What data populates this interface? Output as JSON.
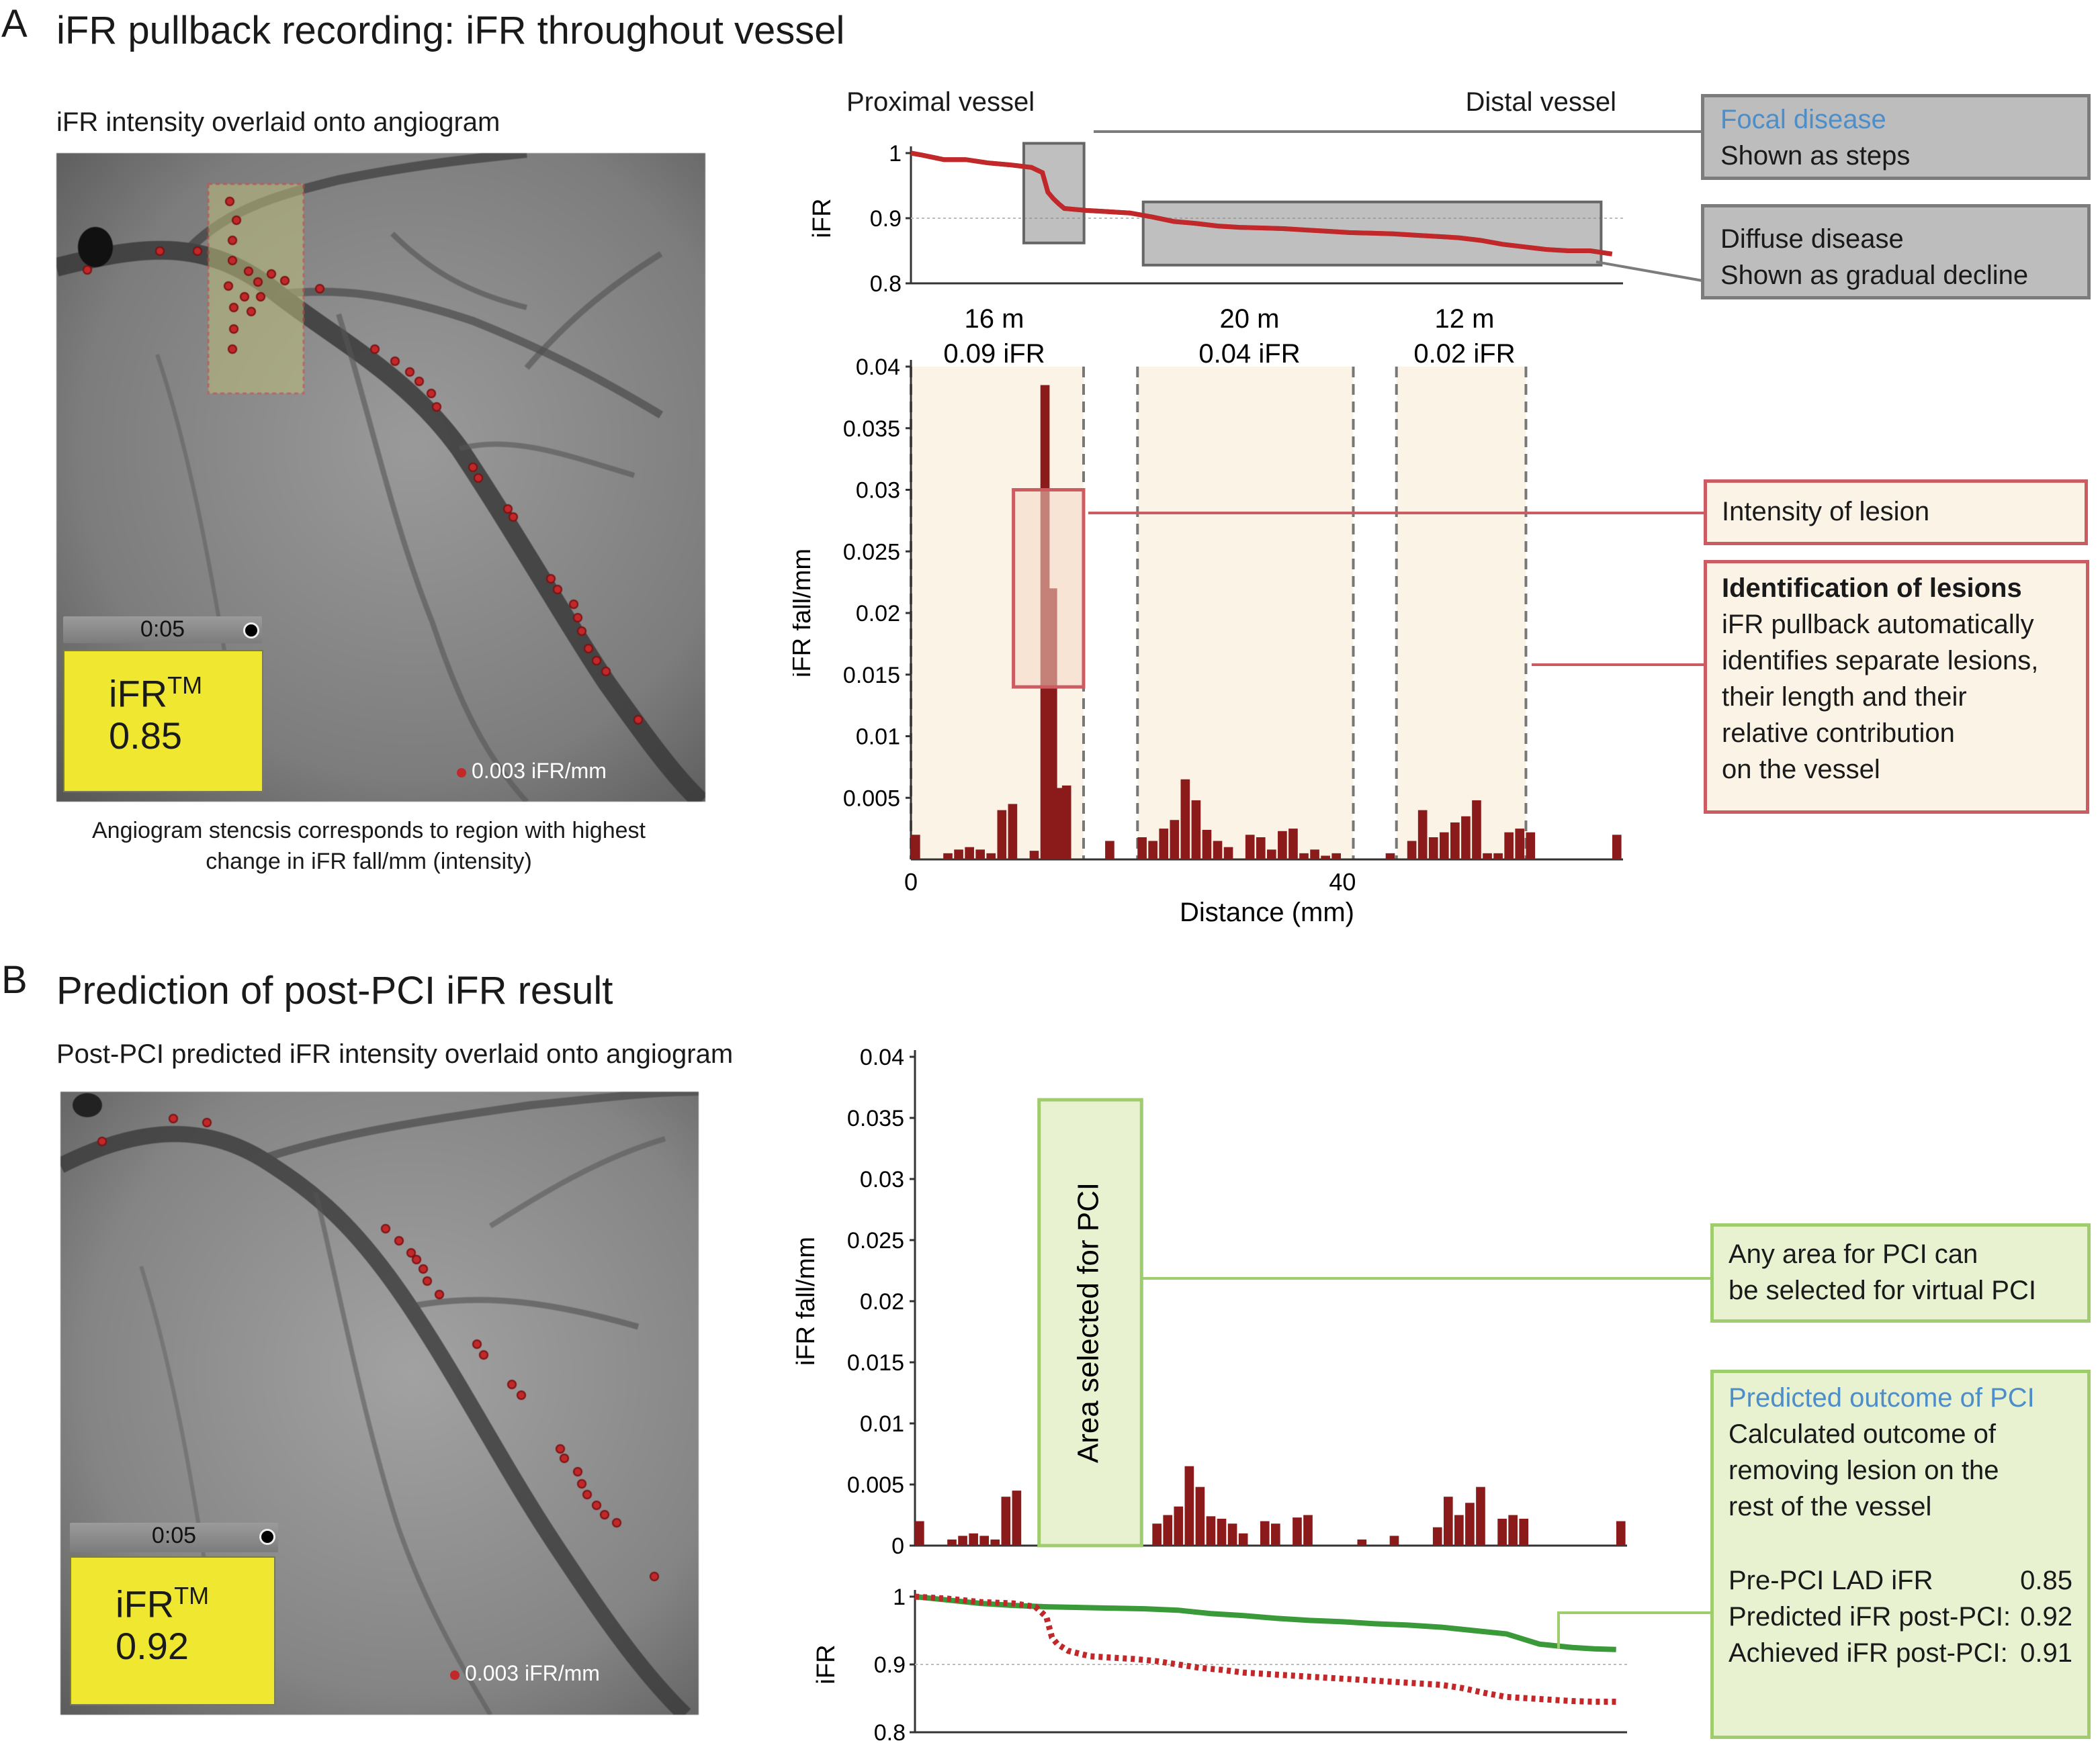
{
  "panel_a": {
    "letter": "A",
    "title": "iFR pullback recording: iFR throughout vessel",
    "angio_subtitle": "iFR intensity overlaid onto angiogram",
    "timer": "0:05",
    "ifr_label": "iFR",
    "ifr_tm": "TM",
    "ifr_value": "0.85",
    "scale_label": "0.003 iFR/mm",
    "caption_line1": "Angiogram stencsis corresponds to region with highest",
    "caption_line2": "change in iFR fall/mm (intensity)",
    "proximal_label": "Proximal vessel",
    "distal_label": "Distal vessel",
    "segments": [
      {
        "length": "16 m",
        "ifr": "0.09 iFR"
      },
      {
        "length": "20 m",
        "ifr": "0.04 iFR"
      },
      {
        "length": "12 m",
        "ifr": "0.02 iFR"
      }
    ],
    "callouts": {
      "focal_title": "Focal disease",
      "focal_text": "Shown as steps",
      "diffuse_title": "Diffuse disease",
      "diffuse_text": "Shown as gradual decline",
      "intensity": "Intensity of lesion",
      "identification_title": "Identification of lesions",
      "identification_lines": [
        "iFR pullback automatically",
        "identifies separate lesions,",
        "their length and their",
        "relative contribution",
        "on the vessel"
      ]
    }
  },
  "panel_b": {
    "letter": "B",
    "title": "Prediction of post-PCI iFR result",
    "angio_subtitle": "Post-PCI predicted iFR intensity overlaid onto angiogram",
    "timer": "0:05",
    "ifr_label": "iFR",
    "ifr_tm": "TM",
    "ifr_value": "0.92",
    "scale_label": "0.003 iFR/mm",
    "area_label": "Area selected for PCI",
    "callouts": {
      "any_area_lines": [
        "Any area for PCI can",
        "be selected for virtual PCI"
      ],
      "predicted_title": "Predicted outcome of PCI",
      "predicted_lines": [
        "Calculated outcome of",
        "removing lesion on the",
        "rest of the vessel"
      ],
      "results": [
        {
          "label": "Pre-PCI LAD iFR",
          "value": "0.85"
        },
        {
          "label": "Predicted iFR post-PCI:",
          "value": "0.92"
        },
        {
          "label": "Achieved iFR post-PCI:",
          "value": "0.91"
        }
      ]
    }
  },
  "colors": {
    "bar": "#8b1a1a",
    "pre_line": "#c0282a",
    "post_line": "#3a9a3a",
    "pink": "#cc5c62",
    "green": "#9fcc6c",
    "grey": "#7c7c7c"
  },
  "chart_data": [
    {
      "id": "a_ifr_trace",
      "type": "line",
      "ylabel": "iFR",
      "ylim": [
        0.8,
        1.0
      ],
      "yticks": [
        "1",
        "0.9",
        "0.8"
      ],
      "xlim": [
        0,
        65
      ],
      "series": [
        {
          "name": "iFR",
          "x": [
            0,
            1,
            3,
            5,
            7,
            9,
            10,
            11,
            12,
            12.5,
            13,
            13.5,
            14,
            16,
            18,
            20,
            22,
            24,
            26,
            28,
            30,
            32,
            34,
            36,
            38,
            40,
            42,
            44,
            46,
            48,
            50,
            52,
            54,
            56,
            58,
            60,
            62,
            64
          ],
          "y": [
            1.0,
            0.997,
            0.99,
            0.99,
            0.985,
            0.982,
            0.98,
            0.978,
            0.97,
            0.94,
            0.93,
            0.922,
            0.915,
            0.912,
            0.91,
            0.908,
            0.902,
            0.895,
            0.892,
            0.888,
            0.886,
            0.885,
            0.884,
            0.882,
            0.88,
            0.878,
            0.877,
            0.876,
            0.874,
            0.872,
            0.87,
            0.866,
            0.86,
            0.856,
            0.852,
            0.85,
            0.85,
            0.845
          ]
        }
      ]
    },
    {
      "id": "a_ifr_fall",
      "type": "bar",
      "xlabel": "Distance (mm)",
      "ylabel": "iFR fall/mm",
      "xlim": [
        0,
        66
      ],
      "xticks": [
        {
          "x": 0,
          "label": "0"
        },
        {
          "x": 40,
          "label": "40"
        }
      ],
      "ylim": [
        0,
        0.04
      ],
      "yticks": [
        "0.04",
        "0.035",
        "0.03",
        "0.025",
        "0.02",
        "0.015",
        "0.01",
        "0.005"
      ],
      "x": [
        0,
        3,
        4,
        5,
        6,
        7,
        8,
        9,
        11,
        12,
        12.7,
        13.4,
        14,
        18,
        21,
        22,
        23,
        24,
        25,
        26,
        27,
        28,
        29,
        31,
        32,
        33,
        34,
        35,
        36,
        37,
        38,
        39,
        44,
        46,
        47,
        48,
        49,
        50,
        51,
        52,
        53,
        54,
        55,
        56,
        57,
        65
      ],
      "values": [
        0.002,
        0.0005,
        0.0008,
        0.001,
        0.0008,
        0.0005,
        0.004,
        0.0045,
        0.0007,
        0.0385,
        0.022,
        0.0058,
        0.006,
        0.0015,
        0.0018,
        0.0015,
        0.0025,
        0.0032,
        0.0065,
        0.0048,
        0.0024,
        0.0015,
        0.001,
        0.002,
        0.0018,
        0.0008,
        0.0023,
        0.0025,
        0.0005,
        0.0008,
        0.0003,
        0.0005,
        0.0005,
        0.0015,
        0.004,
        0.0018,
        0.0022,
        0.003,
        0.0035,
        0.0048,
        0.0005,
        0.0005,
        0.0022,
        0.0025,
        0.0022,
        0.002
      ],
      "segment_ranges": [
        [
          0,
          16
        ],
        [
          21,
          41
        ],
        [
          45,
          57
        ]
      ],
      "highlight": {
        "x": [
          9.5,
          16
        ],
        "y": [
          0.014,
          0.03
        ]
      }
    },
    {
      "id": "b_ifr_fall",
      "type": "bar",
      "ylabel": "iFR fall/mm",
      "xlim": [
        0,
        66
      ],
      "ylim": [
        0,
        0.04
      ],
      "yticks": [
        "0.04",
        "0.035",
        "0.03",
        "0.025",
        "0.02",
        "0.015",
        "0.01",
        "0.005",
        "0"
      ],
      "x": [
        0,
        3,
        4,
        5,
        6,
        7,
        8,
        9,
        22,
        23,
        24,
        25,
        26,
        27,
        28,
        29,
        30,
        32,
        33,
        35,
        36,
        41,
        44,
        48,
        49,
        50,
        51,
        52,
        54,
        55,
        56,
        65
      ],
      "values": [
        0.002,
        0.0005,
        0.0008,
        0.001,
        0.0008,
        0.0005,
        0.004,
        0.0045,
        0.0018,
        0.0025,
        0.0032,
        0.0065,
        0.0048,
        0.0024,
        0.0022,
        0.0018,
        0.001,
        0.002,
        0.0018,
        0.0023,
        0.0025,
        0.0005,
        0.0008,
        0.0015,
        0.004,
        0.0025,
        0.0035,
        0.0048,
        0.0022,
        0.0025,
        0.0022,
        0.002
      ],
      "pci_region": [
        11.5,
        21
      ]
    },
    {
      "id": "b_ifr_trace",
      "type": "line",
      "ylabel": "iFR",
      "ylim": [
        0.8,
        1.0
      ],
      "yticks": [
        "1",
        "0.9",
        "0.8"
      ],
      "xlim": [
        0,
        65
      ],
      "series": [
        {
          "name": "Predicted post-PCI",
          "x": [
            0,
            3,
            6,
            9,
            12,
            15,
            18,
            21,
            24,
            27,
            30,
            33,
            36,
            39,
            42,
            45,
            48,
            51,
            54,
            57,
            60,
            62,
            64
          ],
          "y": [
            1.0,
            0.995,
            0.99,
            0.987,
            0.985,
            0.984,
            0.983,
            0.982,
            0.98,
            0.975,
            0.972,
            0.968,
            0.965,
            0.963,
            0.96,
            0.958,
            0.955,
            0.95,
            0.945,
            0.93,
            0.925,
            0.923,
            0.922
          ]
        },
        {
          "name": "Pre-PCI",
          "x": [
            0,
            3,
            6,
            9,
            11,
            12,
            12.5,
            13,
            14,
            16,
            18,
            20,
            22,
            24,
            26,
            28,
            30,
            32,
            34,
            36,
            38,
            40,
            42,
            44,
            46,
            48,
            50,
            52,
            54,
            56,
            58,
            60,
            62,
            64
          ],
          "y": [
            1.0,
            0.997,
            0.992,
            0.99,
            0.985,
            0.97,
            0.94,
            0.93,
            0.92,
            0.912,
            0.91,
            0.908,
            0.905,
            0.9,
            0.895,
            0.892,
            0.888,
            0.886,
            0.884,
            0.882,
            0.88,
            0.878,
            0.876,
            0.874,
            0.872,
            0.87,
            0.865,
            0.858,
            0.852,
            0.85,
            0.848,
            0.846,
            0.845,
            0.845
          ]
        }
      ]
    }
  ]
}
